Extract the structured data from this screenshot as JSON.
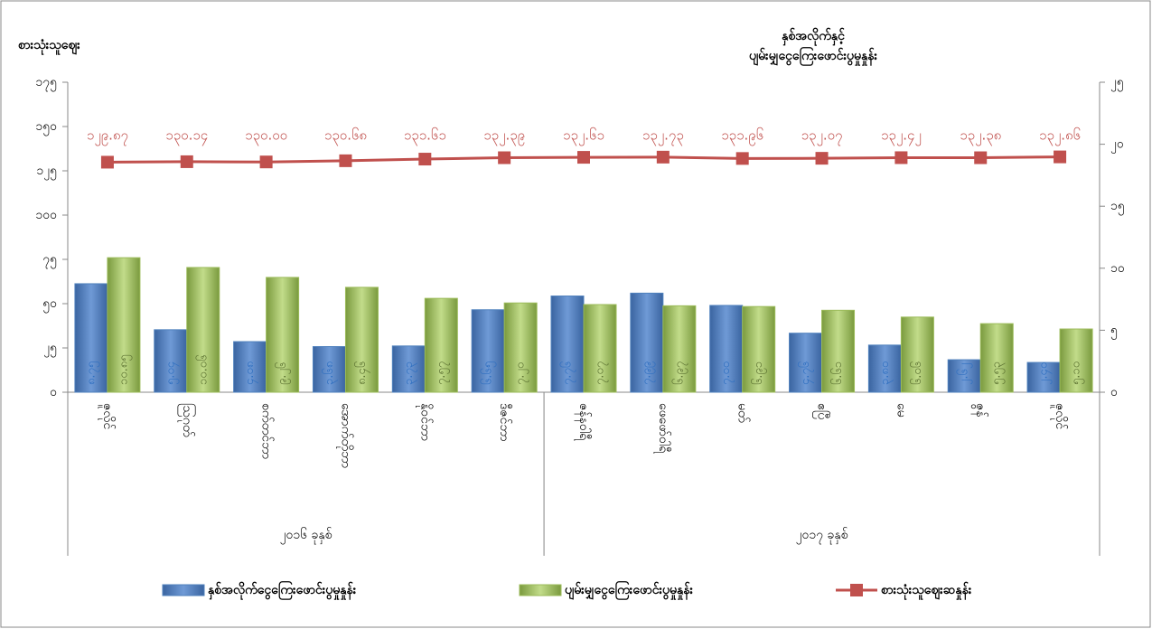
{
  "chart_data": {
    "type": "bar-line",
    "y_label": "စားသုံးသူဈေး",
    "y2_label": [
      "နှစ်အလိုက်နှင့်",
      "ပျမ်းမျှငွေကြေးဖောင်းပွမှုနှုန်း"
    ],
    "categories": [
      "ဇူလိုင်",
      "ဩဂုတ်",
      "စက်တင်ဘာ",
      "အောက်တိုဘာ",
      "နိုဝင်ဘာ",
      "ဒီဇင်ဘာ",
      "ဇန်နဝါရီ",
      "ဖေဖော်ဝါရီ",
      "မတ်",
      "ဧပြီ",
      "မေ",
      "ဇွန်",
      "ဇူလိုင်"
    ],
    "groups": [
      {
        "label": "၂၀၁၆ ခုနှစ်",
        "count": 6
      },
      {
        "label": "၂၀၁၇ ခုနှစ်",
        "count": 7
      }
    ],
    "series": [
      {
        "name": "နှစ်အလိုက်ငွေကြေးဖောင်းပွမှုနှုန်း",
        "type": "bar",
        "axis": "y2",
        "color": "#4f81bd",
        "values": [
          8.75,
          5.04,
          4.08,
          3.68,
          3.73,
          6.65,
          7.76,
          7.99,
          7.0,
          4.76,
          3.8,
          2.62,
          2.4
        ],
        "value_labels": [
          "၈.၇၅",
          "၅.၀၄",
          "၄.၀၈",
          "၃.၆၈",
          "၃.၇၃",
          "၆.၆၅",
          "၇.၇၆",
          "၇.၉၉",
          "၇.၀၀",
          "၄.၇၆",
          "၃.၈၀",
          "၂.၆၂",
          "၂.၄၀"
        ]
      },
      {
        "name": "ပျမ်းမျှငွေကြေးဖောင်းပွမှုနှုန်း",
        "type": "bar",
        "axis": "y2",
        "color": "#9bbb59",
        "values": [
          10.85,
          10.06,
          9.26,
          8.46,
          7.57,
          7.2,
          7.07,
          6.97,
          6.91,
          6.61,
          6.06,
          5.53,
          5.1
        ],
        "value_labels": [
          "၁၀.၈၅",
          "၁၀.၀၆",
          "၉.၂၆",
          "၈.၄၆",
          "၇.၅၇",
          "၇.၂၀",
          "၇.၀၇",
          "၆.၉၇",
          "၆.၉၁",
          "၆.၆၁",
          "၆.၀၆",
          "၅.၅၃",
          "၅.၁၀"
        ]
      },
      {
        "name": "စားသုံးသူဈေးဆနှုန်း",
        "type": "line",
        "color": "#c0504d",
        "values": [
          129.87,
          130.14,
          130.0,
          130.68,
          131.61,
          132.39,
          132.61,
          132.73,
          131.96,
          132.07,
          132.42,
          132.38,
          132.86
        ],
        "value_labels": [
          "၁၂၉.၈၇",
          "၁၃၀.၁၄",
          "၁၃၀.၀၀",
          "၁၃၀.၆၈",
          "၁၃၁.၆၁",
          "၁၃၂.၃၉",
          "၁၃၂.၆၁",
          "၁၃၂.၇၃",
          "၁၃၁.၉၆",
          "၁၃၂.၀၇",
          "၁၃၂.၄၂",
          "၁၃၂.၃၈",
          "၁၃၂.၈၆"
        ]
      }
    ],
    "ylim": [
      0,
      175
    ],
    "yticks": [
      {
        "value": 0,
        "label": "၀"
      },
      {
        "value": 25,
        "label": "၂၅"
      },
      {
        "value": 50,
        "label": "၅၀"
      },
      {
        "value": 75,
        "label": "၇၅"
      },
      {
        "value": 100,
        "label": "၁၀၀"
      },
      {
        "value": 125,
        "label": "၁၂၅"
      },
      {
        "value": 150,
        "label": "၁၅၀"
      },
      {
        "value": 175,
        "label": "၁၇၅"
      }
    ],
    "y2lim": [
      0,
      25
    ],
    "y2ticks": [
      {
        "value": 0,
        "label": "၀"
      },
      {
        "value": 5,
        "label": "၅"
      },
      {
        "value": 10,
        "label": "၁၀"
      },
      {
        "value": 15,
        "label": "၁၅"
      },
      {
        "value": 20,
        "label": "၂၀"
      },
      {
        "value": 25,
        "label": "၂၅"
      }
    ],
    "legend": "bottom"
  }
}
